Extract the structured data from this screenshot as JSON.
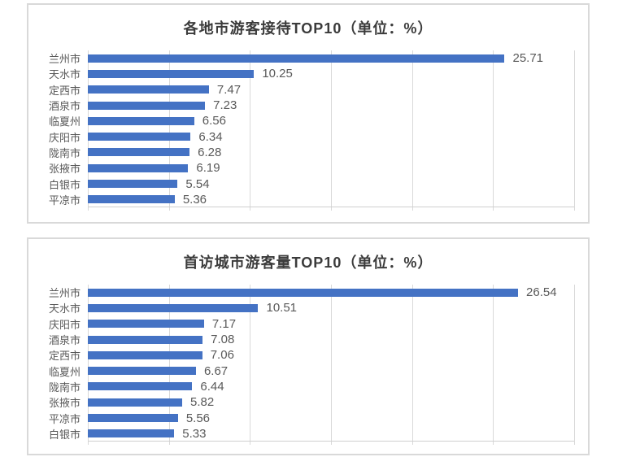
{
  "page": {
    "background_color": "#ffffff",
    "panel_border_color": "#d9d9d9",
    "title_text_color": "#3b3b3b",
    "label_text_color": "#595959",
    "gridline_color": "#d9d9d9"
  },
  "chart_data": [
    {
      "type": "bar",
      "orientation": "horizontal",
      "title": "各地市游客接待TOP10（单位：%）",
      "categories": [
        "兰州市",
        "天水市",
        "定西市",
        "酒泉市",
        "临夏州",
        "庆阳市",
        "陇南市",
        "张掖市",
        "白银市",
        "平凉市"
      ],
      "values": [
        25.71,
        10.25,
        7.47,
        7.23,
        6.56,
        6.34,
        6.28,
        6.19,
        5.54,
        5.36
      ],
      "xlim": [
        0,
        30
      ],
      "gridlines": [
        0,
        5,
        10,
        15,
        20,
        25,
        30
      ],
      "bar_color": "#4472C4",
      "value_labels": true,
      "legend": "none",
      "grid": "vertical"
    },
    {
      "type": "bar",
      "orientation": "horizontal",
      "title": "首访城市游客量TOP10（单位：%）",
      "categories": [
        "兰州市",
        "天水市",
        "庆阳市",
        "酒泉市",
        "定西市",
        "临夏州",
        "陇南市",
        "张掖市",
        "平凉市",
        "白银市"
      ],
      "values": [
        26.54,
        10.51,
        7.17,
        7.08,
        7.06,
        6.67,
        6.44,
        5.82,
        5.56,
        5.33
      ],
      "xlim": [
        0,
        30
      ],
      "gridlines": [
        0,
        5,
        10,
        15,
        20,
        25,
        30
      ],
      "bar_color": "#4472C4",
      "value_labels": true,
      "legend": "none",
      "grid": "vertical"
    }
  ]
}
